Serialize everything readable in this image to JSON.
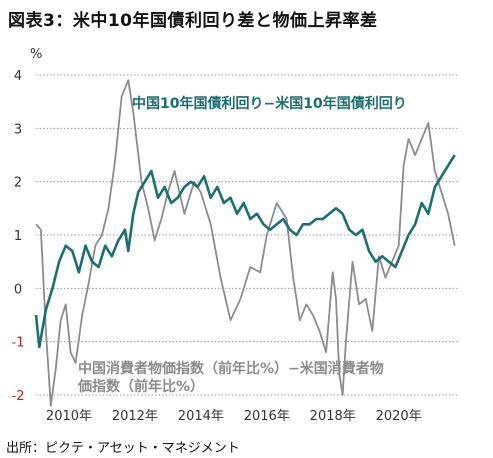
{
  "title": "図表3：米中10年国債利回り差と物価上昇率差",
  "source": "出所：ピクテ・アセット・マネジメント",
  "chart_data": {
    "type": "line",
    "y_unit": "%",
    "ylim": [
      -2,
      4
    ],
    "y_ticks": [
      {
        "label": "4",
        "value": 4
      },
      {
        "label": "3",
        "value": 3
      },
      {
        "label": "2",
        "value": 2
      },
      {
        "label": "1",
        "value": 1
      },
      {
        "label": "0",
        "value": 0
      },
      {
        "label": "-1",
        "value": -1
      },
      {
        "label": "-2",
        "value": -2
      }
    ],
    "xlim": [
      2009.0,
      2021.8
    ],
    "x_ticks": [
      {
        "label": "2010年",
        "value": 2010
      },
      {
        "label": "2012年",
        "value": 2012
      },
      {
        "label": "2014年",
        "value": 2014
      },
      {
        "label": "2016年",
        "value": 2016
      },
      {
        "label": "2018年",
        "value": 2018
      },
      {
        "label": "2020年",
        "value": 2020
      }
    ],
    "grid": "horizontal-dotted",
    "series": [
      {
        "name": "中国10年国債利回り−米国10年国債利回り",
        "color": "#1a7070",
        "x": [
          2009.0,
          2009.1,
          2009.3,
          2009.5,
          2009.7,
          2009.9,
          2010.1,
          2010.3,
          2010.5,
          2010.7,
          2010.9,
          2011.1,
          2011.3,
          2011.5,
          2011.7,
          2011.8,
          2011.95,
          2012.1,
          2012.3,
          2012.5,
          2012.7,
          2012.9,
          2013.1,
          2013.3,
          2013.5,
          2013.7,
          2013.9,
          2014.1,
          2014.3,
          2014.5,
          2014.7,
          2014.9,
          2015.1,
          2015.3,
          2015.5,
          2015.7,
          2015.9,
          2016.1,
          2016.3,
          2016.5,
          2016.7,
          2016.9,
          2017.1,
          2017.3,
          2017.5,
          2017.7,
          2017.9,
          2018.1,
          2018.3,
          2018.5,
          2018.7,
          2018.9,
          2019.1,
          2019.3,
          2019.5,
          2019.7,
          2019.9,
          2020.1,
          2020.3,
          2020.5,
          2020.7,
          2020.9,
          2021.1,
          2021.3,
          2021.5,
          2021.7
        ],
        "y": [
          -0.5,
          -1.1,
          -0.4,
          0.0,
          0.5,
          0.8,
          0.7,
          0.3,
          0.8,
          0.5,
          0.4,
          0.8,
          0.6,
          0.9,
          1.1,
          0.7,
          1.4,
          1.8,
          2.0,
          2.2,
          1.7,
          1.9,
          1.6,
          1.7,
          1.9,
          2.0,
          1.9,
          2.1,
          1.7,
          1.9,
          1.6,
          1.7,
          1.4,
          1.6,
          1.3,
          1.4,
          1.2,
          1.1,
          1.2,
          1.3,
          1.1,
          1.0,
          1.2,
          1.2,
          1.3,
          1.3,
          1.4,
          1.5,
          1.4,
          1.1,
          1.0,
          1.1,
          0.7,
          0.5,
          0.6,
          0.5,
          0.4,
          0.7,
          1.0,
          1.2,
          1.6,
          1.4,
          1.9,
          2.1,
          2.3,
          2.5
        ]
      },
      {
        "name": "中国消費者物価指数（前年比%）−米国消費者物価指数（前年比%）",
        "color": "#8c8c8c",
        "x": [
          2009.0,
          2009.15,
          2009.3,
          2009.45,
          2009.6,
          2009.75,
          2009.9,
          2010.05,
          2010.2,
          2010.4,
          2010.6,
          2010.8,
          2011.0,
          2011.2,
          2011.4,
          2011.6,
          2011.8,
          2011.95,
          2012.2,
          2012.4,
          2012.6,
          2012.8,
          2013.0,
          2013.2,
          2013.5,
          2013.8,
          2014.0,
          2014.3,
          2014.6,
          2014.9,
          2015.2,
          2015.5,
          2015.8,
          2016.0,
          2016.3,
          2016.6,
          2016.8,
          2017.0,
          2017.2,
          2017.4,
          2017.6,
          2017.8,
          2018.0,
          2018.1,
          2018.2,
          2018.3,
          2018.4,
          2018.6,
          2018.8,
          2019.0,
          2019.2,
          2019.4,
          2019.6,
          2019.8,
          2020.0,
          2020.15,
          2020.3,
          2020.5,
          2020.7,
          2020.9,
          2021.1,
          2021.3,
          2021.5,
          2021.6,
          2021.7
        ],
        "y": [
          1.2,
          1.1,
          -0.8,
          -2.2,
          -1.5,
          -0.6,
          -0.3,
          -1.2,
          -1.4,
          -0.5,
          0.1,
          0.8,
          1.0,
          1.5,
          2.4,
          3.6,
          3.9,
          3.3,
          2.0,
          1.5,
          0.9,
          1.3,
          1.8,
          2.2,
          1.4,
          2.0,
          1.8,
          1.2,
          0.2,
          -0.6,
          -0.2,
          0.4,
          0.3,
          1.0,
          1.6,
          1.3,
          0.2,
          -0.6,
          -0.3,
          -0.5,
          -0.8,
          -1.2,
          0.3,
          -0.2,
          -1.6,
          -2.0,
          -1.0,
          0.5,
          -0.3,
          -0.2,
          -0.8,
          0.6,
          0.2,
          0.5,
          0.8,
          2.3,
          2.8,
          2.5,
          2.8,
          3.1,
          2.2,
          1.8,
          1.4,
          1.1,
          0.8
        ]
      }
    ]
  }
}
